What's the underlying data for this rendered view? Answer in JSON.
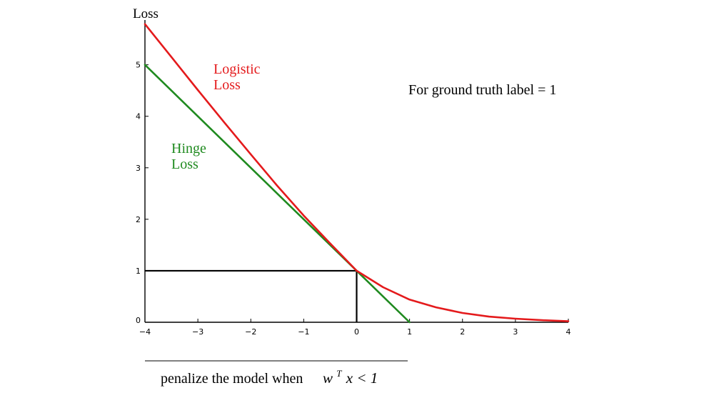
{
  "chart_data": {
    "type": "line",
    "ylabel": "Loss",
    "xlim": [
      -4,
      4
    ],
    "ylim": [
      0,
      5.8
    ],
    "xticks": [
      {
        "value": -4,
        "label": "−4"
      },
      {
        "value": -3,
        "label": "−3"
      },
      {
        "value": -2,
        "label": "−2"
      },
      {
        "value": -1,
        "label": "−1"
      },
      {
        "value": 0,
        "label": "0"
      },
      {
        "value": 1,
        "label": "1"
      },
      {
        "value": 2,
        "label": "2"
      },
      {
        "value": 3,
        "label": "3"
      },
      {
        "value": 4,
        "label": "4"
      }
    ],
    "yticks": [
      {
        "value": 0,
        "label": "0"
      },
      {
        "value": 1,
        "label": "1"
      },
      {
        "value": 2,
        "label": "2"
      },
      {
        "value": 3,
        "label": "3"
      },
      {
        "value": 4,
        "label": "4"
      },
      {
        "value": 5,
        "label": "5"
      }
    ],
    "series": [
      {
        "name": "Logistic Loss",
        "color": "#e41a1c",
        "x": [
          -4,
          -3.5,
          -3,
          -2.5,
          -2,
          -1.5,
          -1,
          -0.5,
          0,
          0.5,
          1,
          1.5,
          2,
          2.5,
          3,
          3.5,
          4
        ],
        "y": [
          5.79,
          5.15,
          4.51,
          3.88,
          3.26,
          2.65,
          2.07,
          1.53,
          1.0,
          0.68,
          0.44,
          0.29,
          0.18,
          0.11,
          0.07,
          0.04,
          0.02
        ]
      },
      {
        "name": "Hinge Loss",
        "color": "#1f8a1f",
        "x": [
          -4,
          1
        ],
        "y": [
          5,
          0
        ]
      }
    ],
    "reference_lines": {
      "color": "#000000",
      "horizontal": {
        "y": 1,
        "x_from": -4,
        "x_to": 0
      },
      "vertical": {
        "x": 0,
        "y_from": 0,
        "y_to": 1
      }
    },
    "series_labels": [
      {
        "lines": [
          "Logistic",
          "Loss"
        ],
        "color": "#e41a1c"
      },
      {
        "lines": [
          "Hinge",
          "Loss"
        ],
        "color": "#1f8a1f"
      }
    ],
    "annotations": {
      "top_right": "For ground truth label = 1",
      "bottom_prefix": "penalize the model when",
      "bottom_math_w": "w",
      "bottom_math_sup": "T",
      "bottom_math_rest": "x < 1"
    }
  }
}
